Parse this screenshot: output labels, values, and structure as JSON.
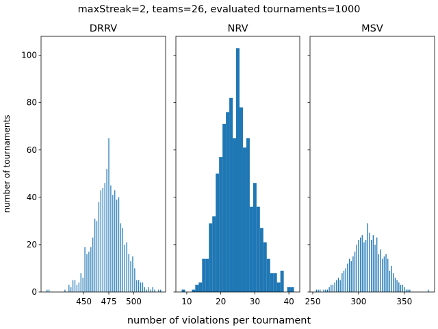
{
  "figure": {
    "suptitle": "maxStreak=2, teams=26, evaluated tournaments=1000",
    "xlabel": "number of violations per tournament",
    "ylabel": "number of tournaments",
    "bar_color": "#1f77b4"
  },
  "chart_data": [
    {
      "type": "bar",
      "title": "DRRV",
      "xlim": [
        407,
        532
      ],
      "ylim": [
        0,
        108
      ],
      "yticks": [
        0,
        20,
        40,
        60,
        80,
        100
      ],
      "xticks": [
        450,
        475,
        500
      ],
      "bar_width": 0.85,
      "x": [
        413,
        415,
        431,
        435,
        437,
        439,
        441,
        443,
        445,
        447,
        449,
        451,
        453,
        455,
        457,
        459,
        461,
        463,
        465,
        467,
        469,
        471,
        473,
        475,
        477,
        479,
        481,
        483,
        485,
        487,
        489,
        491,
        493,
        495,
        497,
        499,
        501,
        503,
        505,
        507,
        509,
        511,
        513,
        515,
        517,
        519,
        521,
        525,
        527
      ],
      "values": [
        1,
        1,
        1,
        3,
        2,
        5,
        5,
        3,
        4,
        8,
        6,
        19,
        16,
        17,
        19,
        23,
        31,
        30,
        38,
        43,
        44,
        46,
        52,
        65,
        45,
        41,
        43,
        39,
        40,
        29,
        27,
        20,
        21,
        16,
        13,
        15,
        10,
        5,
        5,
        4,
        4,
        2,
        1,
        2,
        1,
        2,
        1,
        1,
        1
      ]
    },
    {
      "type": "bar",
      "title": "NRV",
      "xlim": [
        6.8,
        43.2
      ],
      "ylim": [
        0,
        108
      ],
      "yticks": [
        0,
        20,
        40,
        60,
        80,
        100
      ],
      "xticks": [
        10,
        20,
        30,
        40
      ],
      "bar_width": 1.0,
      "x": [
        9,
        10,
        11,
        12,
        13,
        14,
        15,
        16,
        17,
        18,
        19,
        20,
        21,
        22,
        23,
        24,
        25,
        26,
        27,
        28,
        29,
        30,
        31,
        32,
        33,
        34,
        35,
        36,
        37,
        38,
        39,
        40,
        41
      ],
      "values": [
        1,
        0,
        0,
        1,
        3,
        4,
        14,
        14,
        29,
        32,
        50,
        57,
        71,
        76,
        82,
        65,
        103,
        78,
        61,
        65,
        36,
        46,
        36,
        27,
        21,
        14,
        8,
        8,
        4,
        9,
        0,
        2,
        2
      ]
    },
    {
      "type": "bar",
      "title": "MSV",
      "xlim": [
        247,
        383
      ],
      "ylim": [
        0,
        108
      ],
      "yticks": [
        0,
        20,
        40,
        60,
        80,
        100
      ],
      "xticks": [
        250,
        300,
        350
      ],
      "bar_width": 1.0,
      "x": [
        254,
        256,
        258,
        262,
        264,
        266,
        268,
        270,
        272,
        274,
        276,
        278,
        280,
        282,
        284,
        286,
        288,
        290,
        292,
        294,
        296,
        298,
        300,
        302,
        304,
        306,
        308,
        310,
        312,
        314,
        316,
        318,
        320,
        322,
        324,
        326,
        328,
        330,
        332,
        334,
        336,
        338,
        340,
        342,
        344,
        346,
        348,
        350,
        352,
        354,
        356,
        376
      ],
      "values": [
        1,
        1,
        1,
        1,
        1,
        1,
        2,
        3,
        3,
        4,
        5,
        6,
        5,
        8,
        9,
        10,
        12,
        14,
        13,
        15,
        17,
        20,
        22,
        23,
        24,
        21,
        22,
        29,
        25,
        22,
        24,
        20,
        23,
        16,
        18,
        14,
        15,
        16,
        14,
        9,
        11,
        8,
        6,
        5,
        4,
        3,
        3,
        2,
        1,
        1,
        1,
        1
      ]
    }
  ]
}
